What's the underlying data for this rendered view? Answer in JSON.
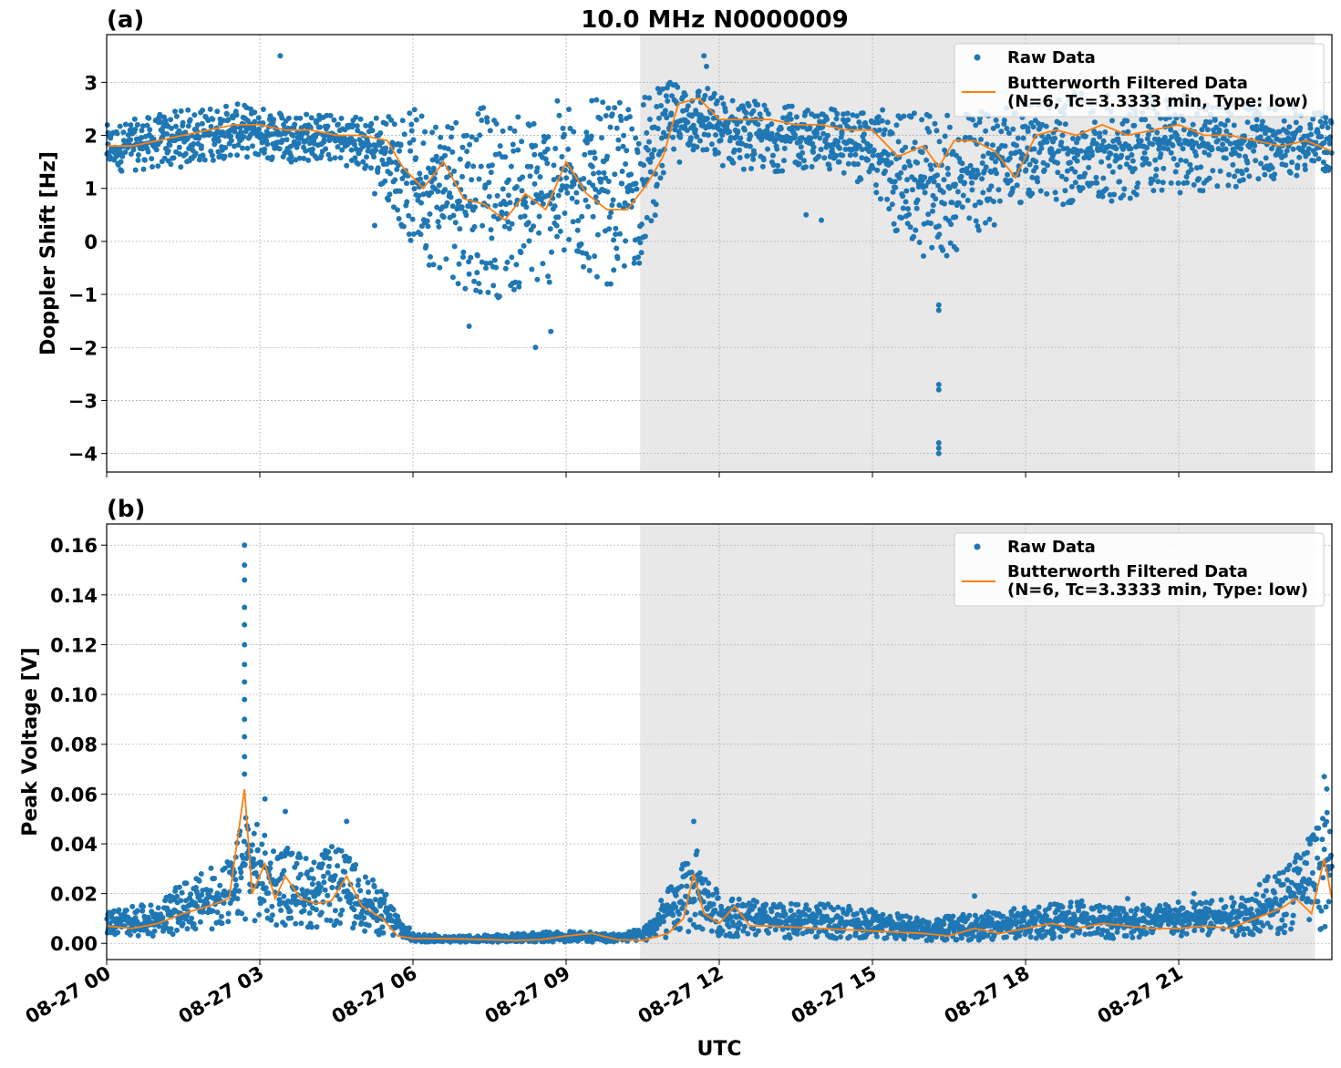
{
  "figure": {
    "title": "10.0 MHz N0000009",
    "xlabel": "UTC",
    "x_ticks": [
      "08-27 00",
      "08-27 03",
      "08-27 06",
      "08-27 09",
      "08-27 12",
      "08-27 15",
      "08-27 18",
      "08-27 21"
    ],
    "shaded_interval_hours": [
      10.45,
      23.67
    ],
    "x_range_hours": [
      0,
      24
    ],
    "colors": {
      "raw": "#1f77b4",
      "filtered": "#ff7f0e",
      "shade": "#e8e8e8",
      "grid": "#b0b0b0"
    },
    "legend": {
      "placement": "upper right",
      "raw": "Raw Data",
      "filtered_line1": "Butterworth Filtered Data",
      "filtered_line2": "(N=6, Tc=3.3333 min, Type: low)"
    }
  },
  "chart_data": [
    {
      "panel": "(a)",
      "type": "scatter",
      "ylabel": "Doppler Shift [Hz]",
      "ylim": [
        -4.35,
        3.9
      ],
      "y_ticks": [
        "3",
        "2",
        "1",
        "0",
        "−1",
        "−2",
        "−3",
        "−4"
      ],
      "y_tick_values": [
        3,
        2,
        1,
        0,
        -1,
        -2,
        -3,
        -4
      ],
      "grid": true,
      "series": [
        {
          "name": "Raw Data",
          "kind": "points",
          "envelope_hours": [
            0,
            1.5,
            2.5,
            3.5,
            4.5,
            5.3,
            6.0,
            6.5,
            7.0,
            7.5,
            8.0,
            8.5,
            9.0,
            9.5,
            10.0,
            10.5,
            11.0,
            11.5,
            12.0,
            13.0,
            14.0,
            15.0,
            15.5,
            16.0,
            16.5,
            17.0,
            17.5,
            18.0,
            19.0,
            20.0,
            21.0,
            22.0,
            23.0,
            24.0
          ],
          "envelope_low": [
            1.3,
            1.4,
            1.6,
            1.5,
            1.5,
            1.2,
            -0.2,
            -0.6,
            -0.9,
            -1.1,
            -1.0,
            -1.0,
            -0.6,
            -0.7,
            -0.9,
            -0.4,
            1.4,
            1.6,
            1.4,
            1.3,
            1.4,
            1.0,
            0.0,
            -0.3,
            -0.4,
            0.0,
            0.4,
            0.8,
            0.6,
            0.8,
            0.9,
            1.0,
            1.2,
            1.3
          ],
          "envelope_high": [
            2.2,
            2.5,
            2.6,
            2.5,
            2.4,
            2.4,
            2.5,
            2.6,
            2.7,
            2.5,
            2.4,
            2.6,
            2.7,
            2.7,
            2.6,
            2.8,
            3.0,
            3.1,
            2.8,
            2.6,
            2.5,
            2.5,
            2.5,
            2.4,
            2.4,
            2.5,
            2.7,
            2.7,
            2.8,
            2.8,
            2.8,
            2.7,
            2.6,
            2.4
          ],
          "outliers": [
            [
              3.4,
              3.5
            ],
            [
              11.7,
              3.5
            ],
            [
              11.75,
              3.3
            ],
            [
              16.3,
              -1.2
            ],
            [
              16.3,
              -1.3
            ],
            [
              16.3,
              -2.7
            ],
            [
              16.3,
              -2.8
            ],
            [
              16.3,
              -3.8
            ],
            [
              16.3,
              -3.9
            ],
            [
              16.3,
              -4.0
            ],
            [
              8.4,
              -2.0
            ],
            [
              7.1,
              -1.6
            ],
            [
              8.7,
              -1.7
            ],
            [
              5.25,
              0.3
            ],
            [
              5.25,
              0.9
            ],
            [
              13.7,
              0.5
            ],
            [
              14.0,
              0.4
            ]
          ]
        },
        {
          "name": "Butterworth Filtered Data",
          "kind": "line",
          "x_hours": [
            0,
            0.5,
            1.0,
            1.5,
            2.0,
            2.5,
            3.0,
            3.5,
            4.0,
            4.5,
            5.0,
            5.5,
            5.8,
            6.2,
            6.6,
            7.0,
            7.4,
            7.8,
            8.2,
            8.6,
            9.0,
            9.4,
            9.8,
            10.2,
            10.6,
            10.9,
            11.2,
            11.6,
            12.0,
            12.5,
            13.0,
            13.5,
            14.0,
            14.5,
            15.0,
            15.5,
            16.0,
            16.3,
            16.6,
            17.0,
            17.4,
            17.8,
            18.2,
            18.6,
            19.0,
            19.5,
            20.0,
            20.5,
            21.0,
            21.5,
            22.0,
            22.5,
            23.0,
            23.5,
            24.0
          ],
          "y": [
            1.8,
            1.8,
            1.9,
            2.0,
            2.1,
            2.2,
            2.2,
            2.1,
            2.1,
            2.0,
            2.0,
            1.9,
            1.4,
            1.0,
            1.5,
            0.8,
            0.7,
            0.4,
            0.9,
            0.6,
            1.5,
            0.9,
            0.6,
            0.6,
            1.1,
            1.6,
            2.6,
            2.7,
            2.3,
            2.3,
            2.3,
            2.2,
            2.2,
            2.1,
            2.1,
            1.6,
            1.8,
            1.4,
            1.9,
            1.9,
            1.7,
            1.2,
            2.0,
            2.1,
            2.0,
            2.2,
            2.0,
            2.1,
            2.2,
            2.0,
            2.0,
            1.9,
            1.8,
            1.9,
            1.7
          ]
        }
      ]
    },
    {
      "panel": "(b)",
      "type": "scatter",
      "ylabel": "Peak Voltage [V]",
      "ylim": [
        -0.0065,
        0.1685
      ],
      "y_ticks": [
        "0.16",
        "0.14",
        "0.12",
        "0.10",
        "0.08",
        "0.06",
        "0.04",
        "0.02",
        "0.00"
      ],
      "y_tick_values": [
        0.16,
        0.14,
        0.12,
        0.1,
        0.08,
        0.06,
        0.04,
        0.02,
        0.0
      ],
      "grid": true,
      "series": [
        {
          "name": "Raw Data",
          "kind": "points",
          "envelope_hours": [
            0,
            1.0,
            1.5,
            2.0,
            2.5,
            2.75,
            3.0,
            3.5,
            4.0,
            4.5,
            5.0,
            5.5,
            6.0,
            7.0,
            8.0,
            9.0,
            10.0,
            10.5,
            11.0,
            11.5,
            12.0,
            13.0,
            14.0,
            15.0,
            16.0,
            17.0,
            18.0,
            19.0,
            20.0,
            21.0,
            22.0,
            23.0,
            23.5,
            24.0
          ],
          "envelope_low": [
            0.003,
            0.003,
            0.004,
            0.005,
            0.006,
            0.01,
            0.006,
            0.007,
            0.006,
            0.006,
            0.005,
            0.002,
            0.0005,
            0.0005,
            0.0005,
            0.0005,
            0.0005,
            0.0008,
            0.002,
            0.004,
            0.003,
            0.002,
            0.002,
            0.002,
            0.001,
            0.001,
            0.002,
            0.002,
            0.002,
            0.002,
            0.003,
            0.004,
            0.005,
            0.006
          ],
          "envelope_high": [
            0.014,
            0.016,
            0.025,
            0.03,
            0.035,
            0.062,
            0.045,
            0.04,
            0.035,
            0.04,
            0.03,
            0.02,
            0.004,
            0.003,
            0.004,
            0.005,
            0.004,
            0.006,
            0.022,
            0.04,
            0.02,
            0.016,
            0.016,
            0.014,
            0.01,
            0.012,
            0.015,
            0.017,
            0.016,
            0.017,
            0.018,
            0.03,
            0.045,
            0.055
          ],
          "outliers": [
            [
              2.7,
              0.16
            ],
            [
              2.7,
              0.152
            ],
            [
              2.7,
              0.146
            ],
            [
              2.7,
              0.135
            ],
            [
              2.7,
              0.128
            ],
            [
              2.7,
              0.12
            ],
            [
              2.7,
              0.112
            ],
            [
              2.7,
              0.105
            ],
            [
              2.7,
              0.098
            ],
            [
              2.7,
              0.09
            ],
            [
              2.7,
              0.083
            ],
            [
              2.7,
              0.075
            ],
            [
              2.7,
              0.068
            ],
            [
              3.1,
              0.058
            ],
            [
              3.5,
              0.053
            ],
            [
              4.7,
              0.049
            ],
            [
              11.5,
              0.049
            ],
            [
              23.85,
              0.067
            ],
            [
              23.9,
              0.062
            ],
            [
              17.0,
              0.019
            ],
            [
              19.1,
              0.017
            ],
            [
              20.0,
              0.018
            ],
            [
              21.3,
              0.02
            ]
          ]
        },
        {
          "name": "Butterworth Filtered Data",
          "kind": "line",
          "x_hours": [
            0,
            0.5,
            1.0,
            1.5,
            2.0,
            2.4,
            2.7,
            2.85,
            3.1,
            3.3,
            3.5,
            3.8,
            4.1,
            4.4,
            4.7,
            5.0,
            5.4,
            5.7,
            6.0,
            7.0,
            8.0,
            8.5,
            9.0,
            9.5,
            10.0,
            10.5,
            11.0,
            11.3,
            11.5,
            11.7,
            12.0,
            12.3,
            12.6,
            13.0,
            14.0,
            15.0,
            16.0,
            16.5,
            17.0,
            17.5,
            18.0,
            18.5,
            19.0,
            19.5,
            20.0,
            20.5,
            21.0,
            21.5,
            22.0,
            22.5,
            23.0,
            23.3,
            23.6,
            23.85,
            24.0
          ],
          "y": [
            0.007,
            0.006,
            0.008,
            0.012,
            0.015,
            0.018,
            0.062,
            0.02,
            0.032,
            0.018,
            0.027,
            0.018,
            0.016,
            0.017,
            0.027,
            0.015,
            0.01,
            0.003,
            0.002,
            0.0018,
            0.0012,
            0.0015,
            0.003,
            0.004,
            0.0015,
            0.0012,
            0.004,
            0.01,
            0.028,
            0.012,
            0.008,
            0.015,
            0.007,
            0.007,
            0.006,
            0.005,
            0.004,
            0.003,
            0.006,
            0.004,
            0.006,
            0.008,
            0.006,
            0.008,
            0.007,
            0.006,
            0.006,
            0.007,
            0.006,
            0.01,
            0.014,
            0.018,
            0.012,
            0.034,
            0.018
          ]
        }
      ]
    }
  ]
}
